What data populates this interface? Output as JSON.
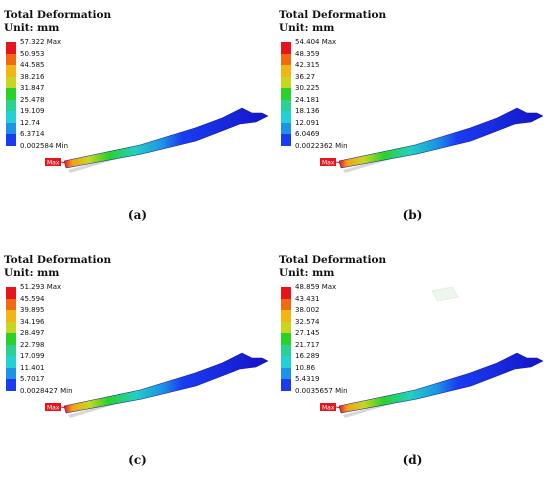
{
  "panels": [
    {
      "title": "Total Deformation",
      "unit": "Unit: mm",
      "legend": [
        "57.322 Max",
        "50.953",
        "44.585",
        "38.216",
        "31.847",
        "25.478",
        "19.109",
        "12.74",
        "6.3714",
        "0.002584 Min"
      ],
      "max_tag": "Max",
      "caption": "(a)"
    },
    {
      "title": "Total Deformation",
      "unit": "Unit: mm",
      "legend": [
        "54.404 Max",
        "48.359",
        "42.315",
        "36.27",
        "30.225",
        "24.181",
        "18.136",
        "12.091",
        "6.0469",
        "0.0022362 Min"
      ],
      "max_tag": "Max",
      "caption": "(b)"
    },
    {
      "title": "Total Deformation",
      "unit": "Unit: mm",
      "legend": [
        "51.293 Max",
        "45.594",
        "39.895",
        "34.196",
        "28.497",
        "22.798",
        "17.099",
        "11.401",
        "5.7017",
        "0.0028427 Min"
      ],
      "max_tag": "Max",
      "caption": "(c)"
    },
    {
      "title": "Total Deformation",
      "unit": "Unit: mm",
      "legend": [
        "48.859 Max",
        "43.431",
        "38.002",
        "32.574",
        "27.145",
        "21.717",
        "16.289",
        "10.86",
        "5.4319",
        "0.0035657 Min"
      ],
      "max_tag": "Max",
      "caption": "(d)"
    }
  ],
  "legend_colors": [
    "#e8141c",
    "#f06a10",
    "#f2b515",
    "#c9d621",
    "#2ad12a",
    "#2ad193",
    "#23d0d6",
    "#1e93e6",
    "#1a3cf0",
    "#1414c8"
  ]
}
